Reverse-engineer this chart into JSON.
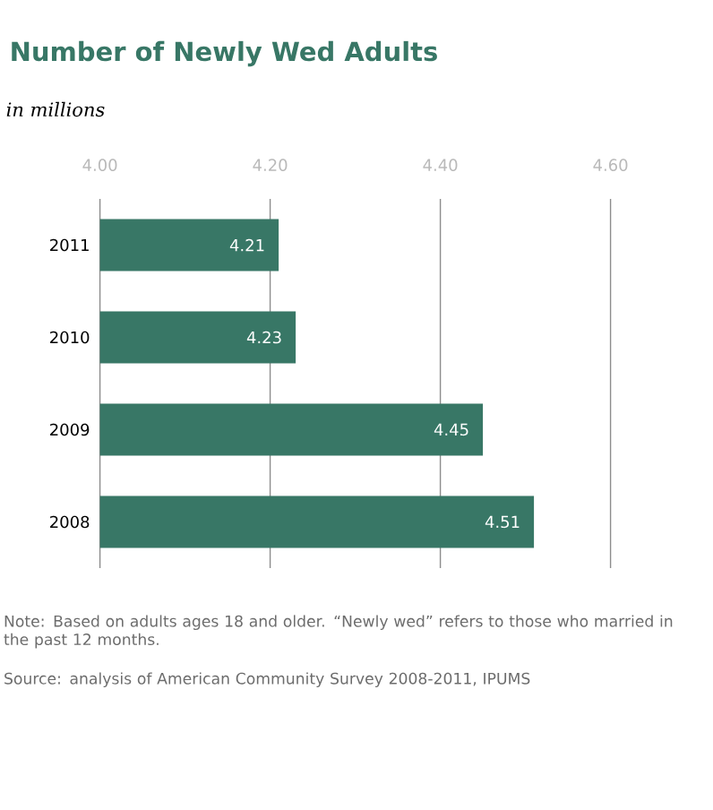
{
  "chart_data": {
    "type": "bar",
    "orientation": "horizontal",
    "title": "Number of Newly Wed Adults",
    "subtitle": "in millions",
    "categories": [
      "2011",
      "2010",
      "2009",
      "2008"
    ],
    "values": [
      4.21,
      4.23,
      4.45,
      4.51
    ],
    "color": "#387766",
    "xlim": [
      4.0,
      4.6
    ],
    "xticks": [
      {
        "value": 4.0,
        "label": "4.00"
      },
      {
        "value": 4.2,
        "label": "4.20"
      },
      {
        "value": 4.4,
        "label": "4.40"
      },
      {
        "value": 4.6,
        "label": "4.60"
      }
    ],
    "grid": "x",
    "data_labels": true,
    "annotations": [
      "Note: Based on adults ages 18 and older. “Newly wed” refers to those who married in the past 12 months.",
      "Source: analysis of American Community Survey 2008-2011, IPUMS"
    ]
  }
}
